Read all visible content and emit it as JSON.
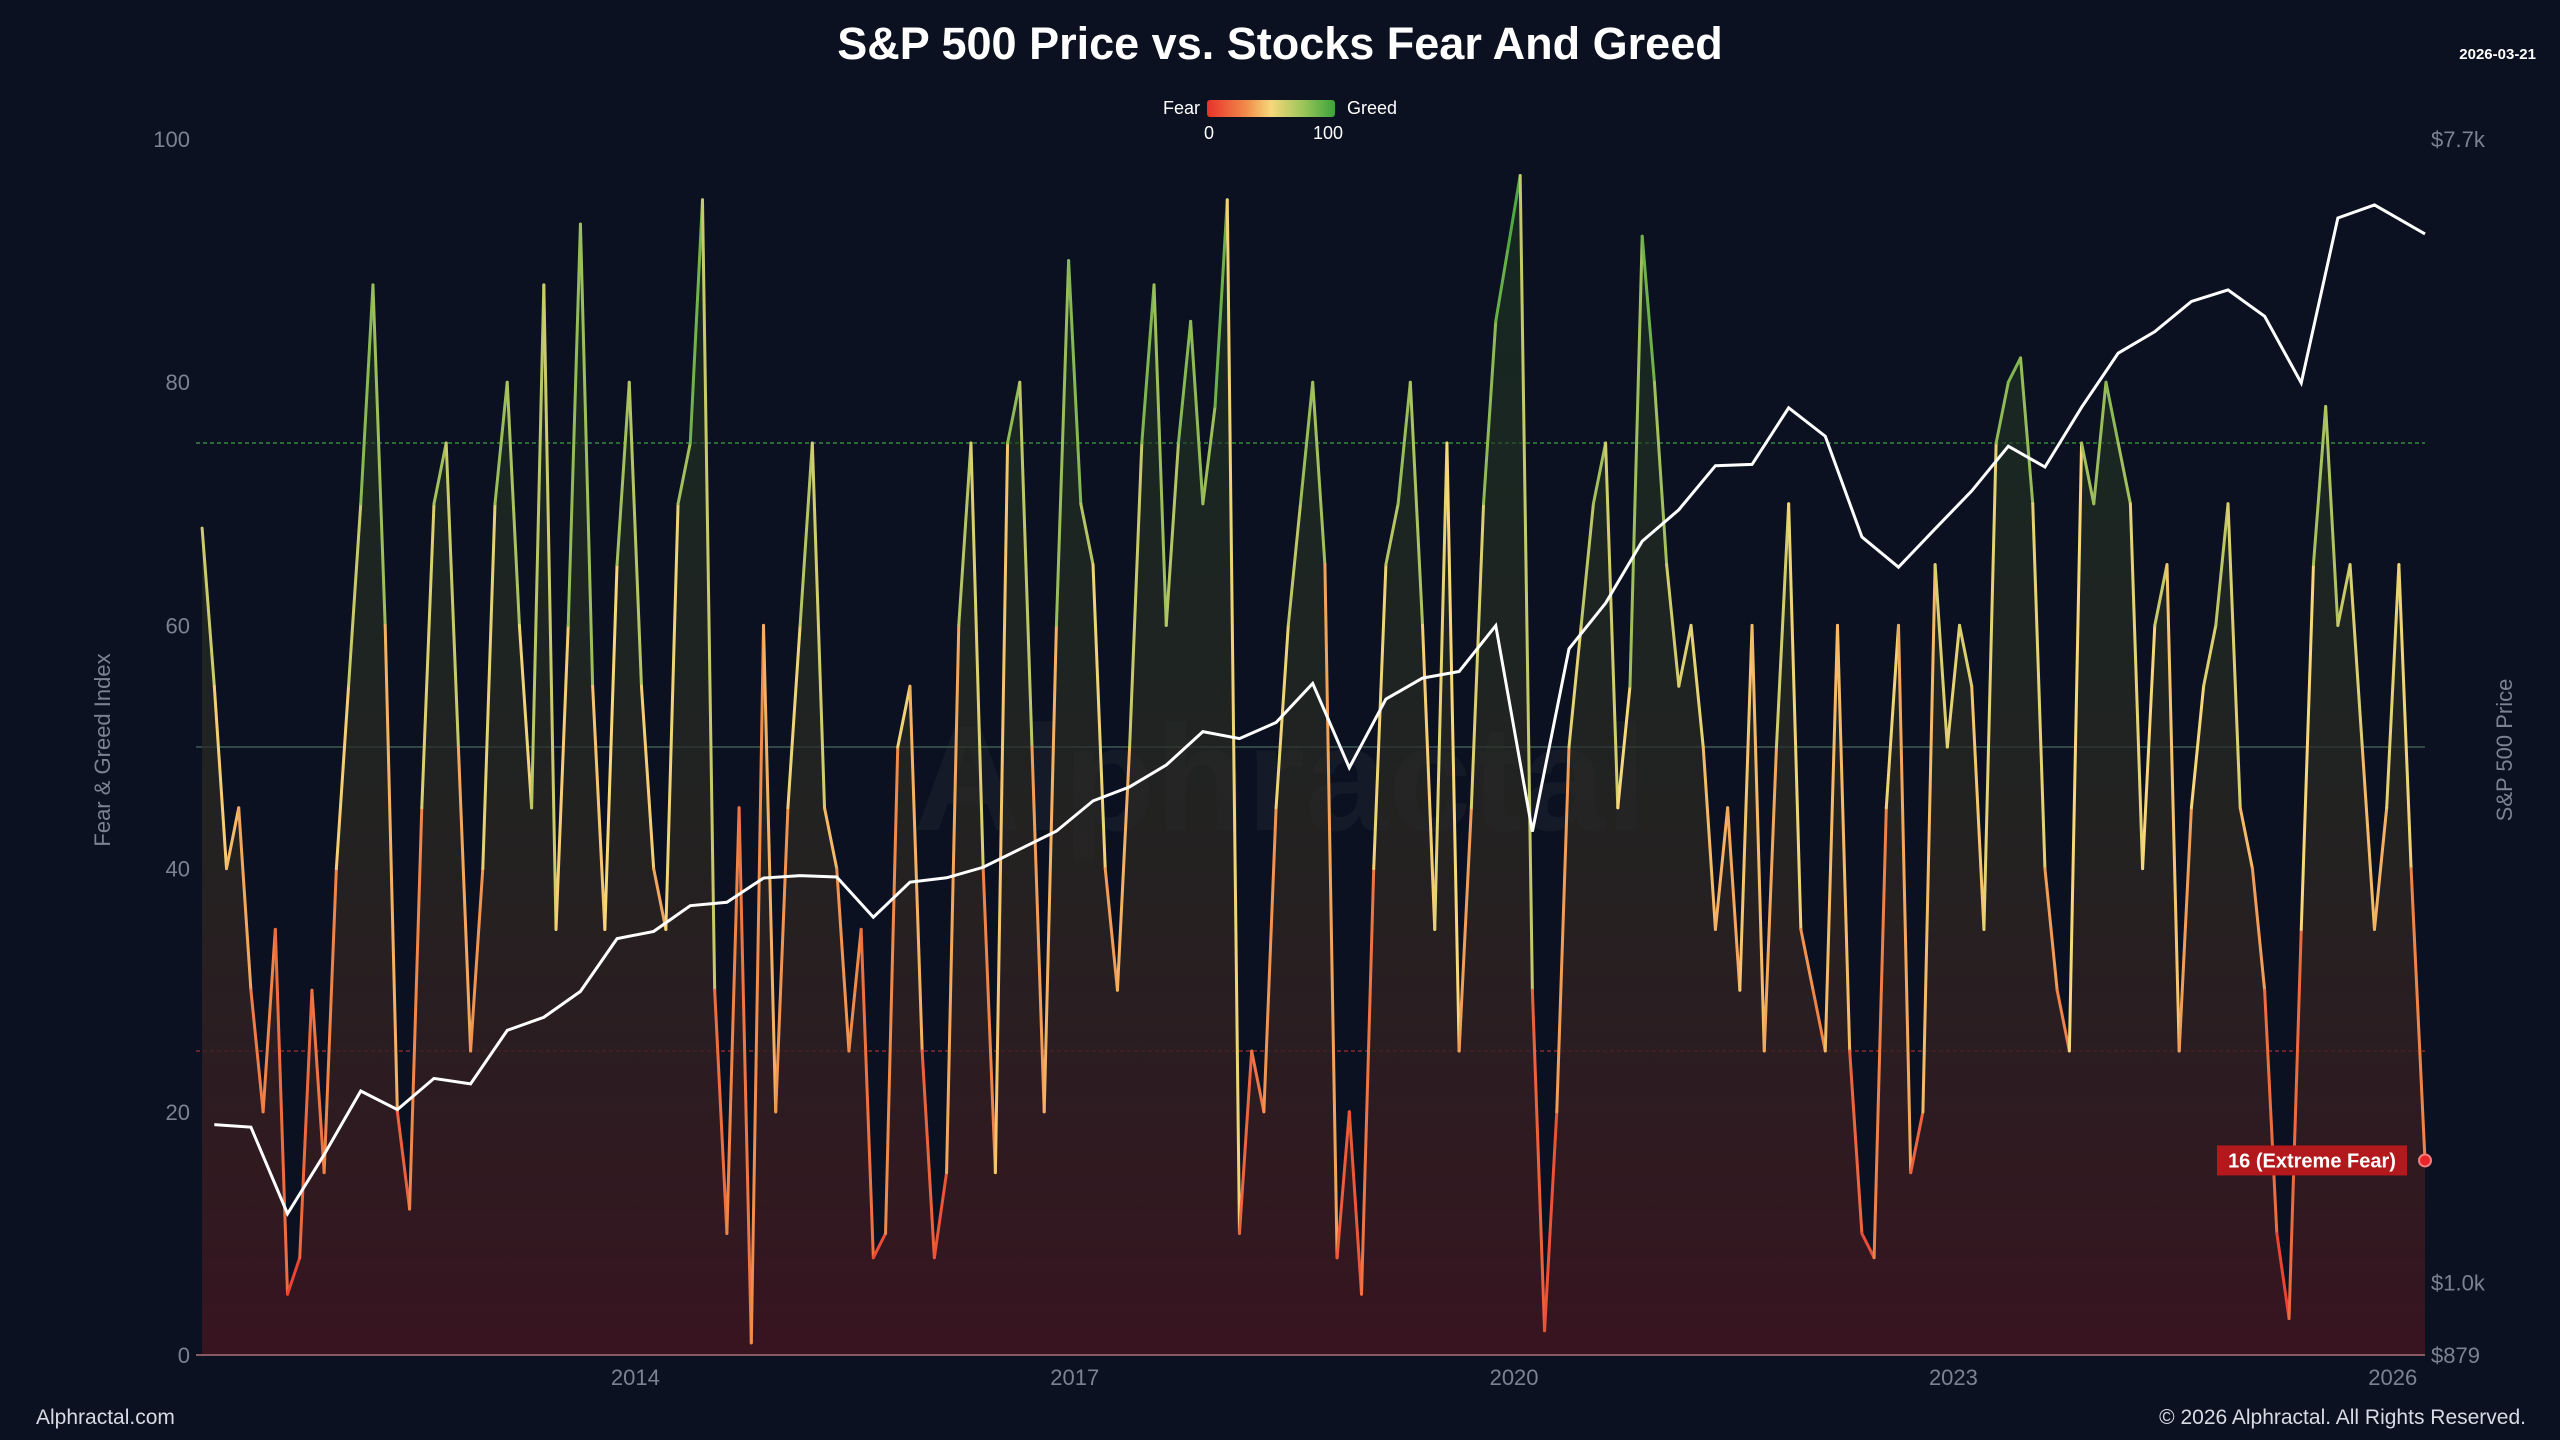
{
  "header": {
    "title": "S&P 500 Price vs. Stocks Fear And Greed",
    "date": "2026-03-21"
  },
  "legend": {
    "left_label": "Fear",
    "right_label": "Greed",
    "min_label": "0",
    "max_label": "100",
    "colors": [
      "#e8322b",
      "#f7d77a",
      "#3aa33a"
    ]
  },
  "footer": {
    "brand": "Alphractal.com",
    "copyright": "© 2026 Alphractal. All Rights Reserved."
  },
  "watermark": "Alphractal",
  "chart_data": {
    "type": "line",
    "title": "S&P 500 Price vs. Stocks Fear And Greed",
    "ylabel": "Fear & Greed Index",
    "y2label": "S&P 500 Price",
    "ylim": [
      0,
      100
    ],
    "y2lim": [
      879,
      7700
    ],
    "y2_scale": "log",
    "xlim": [
      "2011-01",
      "2026-03"
    ],
    "x_ticks": [
      "2014",
      "2017",
      "2020",
      "2023",
      "2026"
    ],
    "y_ticks": [
      "0",
      "20",
      "40",
      "60",
      "80",
      "100"
    ],
    "y2_ticks": [
      "$879",
      "$1.0k",
      "$7.7k"
    ],
    "reference_lines": [
      {
        "value": 75,
        "color": "#2f8a3a"
      },
      {
        "value": 50,
        "color": "#3f5a55"
      },
      {
        "value": 25,
        "color": "#8a2a2a"
      }
    ],
    "annotation": {
      "label": "16 (Extreme Fear)",
      "value": 16,
      "date": "2026-03-21"
    },
    "series": [
      {
        "name": "Fear & Greed Index",
        "frequency": "monthly",
        "values": {
          "2011": [
            68,
            55,
            40,
            45,
            30,
            20,
            35,
            5,
            8,
            30,
            15,
            40
          ],
          "2012": [
            55,
            70,
            88,
            60,
            20,
            12,
            45,
            70,
            75,
            50,
            25,
            40
          ],
          "2013": [
            70,
            80,
            60,
            45,
            88,
            35,
            60,
            93,
            55,
            35,
            65,
            80
          ],
          "2014": [
            55,
            40,
            35,
            70,
            75,
            95,
            30,
            10,
            45,
            1,
            60,
            20
          ],
          "2015": [
            45,
            60,
            75,
            45,
            40,
            25,
            35,
            8,
            10,
            50,
            55,
            25
          ],
          "2016": [
            8,
            15,
            60,
            75,
            40,
            15,
            75,
            80,
            50,
            20,
            60,
            90
          ],
          "2017": [
            70,
            65,
            40,
            30,
            50,
            75,
            88,
            60,
            75,
            85,
            70,
            78
          ],
          "2018": [
            95,
            10,
            25,
            20,
            45,
            60,
            70,
            80,
            65,
            8,
            20,
            5
          ],
          "2019": [
            40,
            65,
            70,
            80,
            60,
            35,
            75,
            25,
            45,
            70,
            85,
            91
          ],
          "2020": [
            97,
            30,
            2,
            20,
            50,
            60,
            70,
            75,
            45,
            55,
            92,
            80
          ],
          "2021": [
            65,
            55,
            60,
            50,
            35,
            45,
            30,
            60,
            25,
            50,
            70,
            35
          ],
          "2022": [
            30,
            25,
            60,
            25,
            10,
            8,
            45,
            60,
            15,
            20,
            65,
            50
          ],
          "2023": [
            60,
            55,
            35,
            75,
            80,
            82,
            70,
            40,
            30,
            25,
            75,
            70
          ],
          "2024": [
            80,
            75,
            70,
            40,
            60,
            65,
            25,
            45,
            55,
            60,
            70,
            45
          ],
          "2025": [
            40,
            30,
            10,
            3,
            35,
            65,
            78,
            60,
            65,
            50,
            35,
            45
          ],
          "2026": [
            65,
            40,
            16
          ]
        }
      },
      {
        "name": "S&P 500 Price",
        "frequency": "quarterly",
        "values": {
          "2011": [
            1326,
            1320,
            1131,
            1257
          ],
          "2012": [
            1408,
            1362,
            1440,
            1426
          ],
          "2013": [
            1569,
            1606,
            1682,
            1848
          ],
          "2014": [
            1872,
            1960,
            1972,
            2059
          ],
          "2015": [
            2068,
            2063,
            1920,
            2044
          ],
          "2016": [
            2060,
            2099,
            2168,
            2239
          ],
          "2017": [
            2363,
            2423,
            2519,
            2674
          ],
          "2018": [
            2641,
            2718,
            2914,
            2507
          ],
          "2019": [
            2834,
            2942,
            2977,
            3231
          ],
          "2020": [
            2237,
            3100,
            3363,
            3756
          ],
          "2021": [
            3973,
            4298,
            4308,
            4766
          ],
          "2022": [
            4530,
            3785,
            3586,
            3840
          ],
          "2023": [
            4109,
            4450,
            4288,
            4770
          ],
          "2024": [
            5254,
            5460,
            5762,
            5882
          ],
          "2025": [
            5612,
            4982,
            6688,
            6845
          ],
          "2026": [
            6500
          ]
        }
      }
    ]
  }
}
